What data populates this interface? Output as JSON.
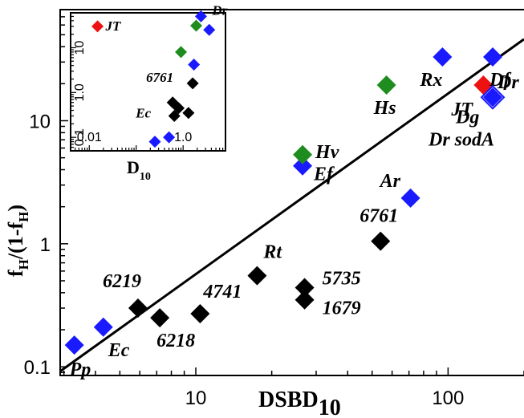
{
  "chart_data": {
    "type": "scatter",
    "xlabel": "DSBD",
    "xlabel_sub": "10",
    "ylabel": "f",
    "ylabel_sub1": "H",
    "ylabel_mid": "/(1-f",
    "ylabel_sub2": "H",
    "ylabel_end": ")",
    "x_scale": "log",
    "y_scale": "log",
    "xlim": [
      2.9,
      200
    ],
    "ylim": [
      0.085,
      80
    ],
    "x_ticks": [
      {
        "v": 10,
        "label": "10"
      },
      {
        "v": 100,
        "label": "100"
      }
    ],
    "y_ticks": [
      {
        "v": 0.1,
        "label": "0.1"
      },
      {
        "v": 1,
        "label": "1"
      },
      {
        "v": 10,
        "label": "10"
      }
    ],
    "fit_line": {
      "x1": 2.9,
      "y1": 0.092,
      "x2": 200,
      "y2": 46
    },
    "points": [
      {
        "label": "Pp",
        "x": 3.3,
        "y": 0.15,
        "color": "#1a1aff",
        "lx": -6,
        "ly": 38
      },
      {
        "label": "Ec",
        "x": 4.3,
        "y": 0.21,
        "color": "#1a1aff",
        "lx": 6,
        "ly": 36
      },
      {
        "label": "6219",
        "x": 5.9,
        "y": 0.3,
        "color": "#000000",
        "lx": -44,
        "ly": -26
      },
      {
        "label": "6218",
        "x": 7.2,
        "y": 0.25,
        "color": "#000000",
        "lx": -4,
        "ly": 36
      },
      {
        "label": "4741",
        "x": 10.4,
        "y": 0.27,
        "color": "#000000",
        "lx": 4,
        "ly": -20
      },
      {
        "label": "Rt",
        "x": 17.5,
        "y": 0.55,
        "color": "#000000",
        "lx": 8,
        "ly": -22
      },
      {
        "label": "5735",
        "x": 27,
        "y": 0.44,
        "color": "#000000",
        "lx": 22,
        "ly": -4
      },
      {
        "label": "1679",
        "x": 27,
        "y": 0.35,
        "color": "#000000",
        "lx": 22,
        "ly": 18
      },
      {
        "label": "6761",
        "x": 54,
        "y": 1.05,
        "color": "#000000",
        "lx": -26,
        "ly": -24
      },
      {
        "label": "Ar",
        "x": 71,
        "y": 2.35,
        "color": "#1a1aff",
        "lx": -38,
        "ly": -14
      },
      {
        "label": "Ef",
        "x": 26.5,
        "y": 4.3,
        "color": "#1a1aff",
        "lx": 14,
        "ly": 18
      },
      {
        "label": "Hv",
        "x": 26.5,
        "y": 5.3,
        "color": "#1f8c1f",
        "lx": 16,
        "ly": 4
      },
      {
        "label": "Hs",
        "x": 57,
        "y": 19.5,
        "color": "#1f8c1f",
        "lx": -16,
        "ly": 36
      },
      {
        "label": "Rx",
        "x": 95,
        "y": 33,
        "color": "#1a1aff",
        "lx": -28,
        "ly": 36
      },
      {
        "label": "JT",
        "x": 138,
        "y": 19.5,
        "color": "#ee1111",
        "lx": -40,
        "ly": 38
      },
      {
        "label": "Df",
        "x": 172,
        "y": 33,
        "color": "#1a1aff",
        "lx": -4,
        "ly": 36
      },
      {
        "label": "Dg",
        "x": 240,
        "y": 15.5,
        "color": "#1a1aff",
        "lx": -46,
        "ly": 32
      },
      {
        "label": "Dr",
        "x": 240,
        "y": 15.8,
        "color": "#1a1aff",
        "lx": 6,
        "ly": -10
      },
      {
        "label": "Dr sodA",
        "x": 240,
        "y": 15.5,
        "color": "#1a1aff",
        "hollow": true,
        "lx": -80,
        "ly": 60
      }
    ],
    "inset": {
      "xlabel": "D",
      "xlabel_sub": "10",
      "x_scale": "log",
      "y_scale": "log",
      "xlim": [
        0.004,
        8
      ],
      "ylim": [
        0.05,
        60
      ],
      "x_ticks": [
        {
          "v": 0.01,
          "label": "0.01"
        },
        {
          "v": 1,
          "label": "1.0"
        }
      ],
      "y_ticks": [
        {
          "v": 0.1,
          "label": "0.1"
        },
        {
          "v": 1,
          "label": "1.0"
        },
        {
          "v": 10,
          "label": "10"
        }
      ],
      "points": [
        {
          "label": "JT",
          "x": 0.015,
          "y": 30,
          "color": "#ee1111",
          "lx": 10,
          "ly": 5
        },
        {
          "label": "",
          "x": 0.25,
          "y": 0.08,
          "color": "#1a1aff"
        },
        {
          "label": "",
          "x": 0.5,
          "y": 0.1,
          "color": "#1a1aff"
        },
        {
          "label": "Ec",
          "x": 0.65,
          "y": 0.3,
          "color": "#000000",
          "lx": -48,
          "ly": 2
        },
        {
          "label": "",
          "x": 0.6,
          "y": 0.6,
          "color": "#000000"
        },
        {
          "label": "",
          "x": 0.8,
          "y": 0.45,
          "color": "#000000"
        },
        {
          "label": "",
          "x": 1.3,
          "y": 0.35,
          "color": "#000000"
        },
        {
          "label": "6761",
          "x": 1.6,
          "y": 1.6,
          "color": "#000000",
          "lx": -58,
          "ly": -2
        },
        {
          "label": "",
          "x": 1.7,
          "y": 4.2,
          "color": "#1a1aff"
        },
        {
          "label": "",
          "x": 0.9,
          "y": 8,
          "color": "#1f8c1f"
        },
        {
          "label": "",
          "x": 1.9,
          "y": 31,
          "color": "#1f8c1f"
        },
        {
          "label": "Dr",
          "x": 2.4,
          "y": 50,
          "color": "#1a1aff",
          "lx": 14,
          "ly": -2
        },
        {
          "label": "",
          "x": 3.6,
          "y": 25,
          "color": "#1a1aff"
        }
      ]
    }
  }
}
